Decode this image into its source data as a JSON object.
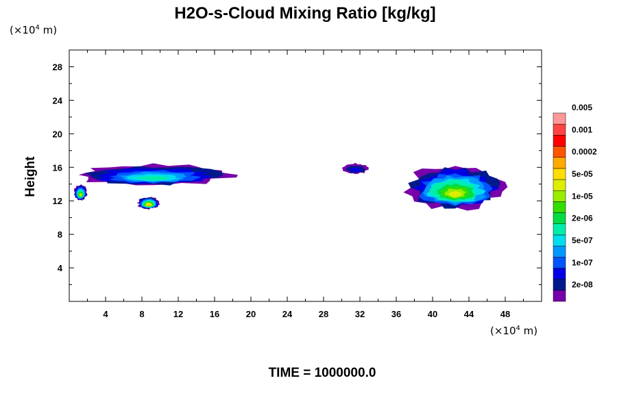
{
  "chart_data": {
    "type": "heatmap",
    "title": "H2O-s-Cloud Mixing Ratio [kg/kg]",
    "ylabel": "Height",
    "xlabel": "",
    "x_unit_label_prefix": "(×10",
    "x_unit_label_exp": "4",
    "x_unit_label_suffix": " m)",
    "y_unit_label_prefix": "(×10",
    "y_unit_label_exp": "4",
    "y_unit_label_suffix": " m)",
    "xlim": [
      0,
      52
    ],
    "ylim": [
      0,
      30
    ],
    "x_ticks": [
      4,
      8,
      12,
      16,
      20,
      24,
      28,
      32,
      36,
      40,
      44,
      48
    ],
    "y_ticks": [
      4,
      8,
      12,
      16,
      20,
      24,
      28
    ],
    "grid": false,
    "legend_position": "right",
    "colorbar": {
      "colors": [
        "#7700aa",
        "#001a8c",
        "#0000e6",
        "#0055ff",
        "#0099ff",
        "#00ddee",
        "#00eeaa",
        "#00dd44",
        "#33dd00",
        "#99ee00",
        "#ddee00",
        "#ffdd00",
        "#ffaa00",
        "#ff5500",
        "#ff0000",
        "#ff4444",
        "#ff9999"
      ],
      "labels": [
        "2e-08",
        "1e-07",
        "5e-07",
        "2e-06",
        "1e-05",
        "5e-05",
        "0.0002",
        "0.001",
        "0.005"
      ]
    },
    "footer": "TIME = 1000000.0",
    "features": [
      {
        "name": "upper-cloud-layer-west",
        "x": [
          0.5,
          18
        ],
        "y": [
          13.8,
          16.4
        ],
        "level": 6
      },
      {
        "name": "lower-cloud-patch-west",
        "x": [
          0.5,
          2
        ],
        "y": [
          12,
          14
        ],
        "level": 10
      },
      {
        "name": "lower-cloud-patch-mid",
        "x": [
          7.5,
          10
        ],
        "y": [
          11,
          12.5
        ],
        "level": 12
      },
      {
        "name": "cloud-patch-32",
        "x": [
          30,
          33
        ],
        "y": [
          15.2,
          16.5
        ],
        "level": 2
      },
      {
        "name": "cloud-layer-east",
        "x": [
          37,
          48
        ],
        "y": [
          11,
          16.3
        ],
        "level": 10
      }
    ]
  }
}
